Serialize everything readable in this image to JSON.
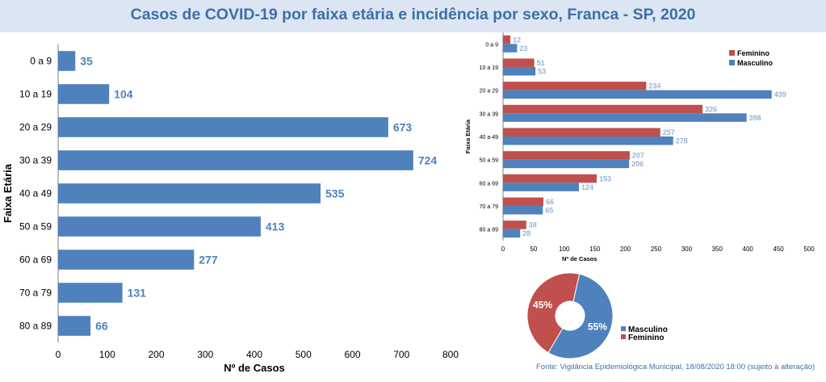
{
  "title": "Casos de COVID-19 por faixa etária e incidência por sexo, Franca - SP, 2020",
  "source": "Fonte: Vigilância Epidemiológica Municipal, 18/08/2020 18:00 (sujeito à alteração)",
  "colors": {
    "masculino": "#4f81bd",
    "feminino": "#c0504d",
    "label_main": "#4f81bd",
    "label_small": "#95b3d7",
    "title": "#3f6ea8"
  },
  "chart_data": [
    {
      "type": "bar",
      "orientation": "horizontal",
      "categories": [
        "0 a 9",
        "10 a 19",
        "20 a 29",
        "30 a 39",
        "40 a 49",
        "50 a 59",
        "60  a 69",
        "70 a 79",
        "80 a 89"
      ],
      "values": [
        35,
        104,
        673,
        724,
        535,
        413,
        277,
        131,
        66
      ],
      "xlabel": "Nº de Casos",
      "ylabel": "Faixa Etária",
      "xlim": [
        0,
        800
      ],
      "xticks": [
        0,
        100,
        200,
        300,
        400,
        500,
        600,
        700,
        800
      ],
      "grid": false
    },
    {
      "type": "bar",
      "orientation": "horizontal",
      "categories": [
        "0 a 9",
        "10 a 19",
        "20 a 29",
        "30 a 39",
        "40 a 49",
        "50 a 59",
        "60 a 69",
        "70 a 79",
        "80 a 89"
      ],
      "series": [
        {
          "name": "Feminino",
          "values": [
            12,
            51,
            234,
            326,
            257,
            207,
            153,
            66,
            38
          ]
        },
        {
          "name": "Masculino",
          "values": [
            23,
            53,
            439,
            398,
            278,
            206,
            124,
            65,
            28
          ]
        }
      ],
      "xlabel": "Nº de Casos",
      "ylabel": "Faixa Etária",
      "xlim": [
        0,
        500
      ],
      "xticks": [
        0,
        50,
        100,
        150,
        200,
        250,
        300,
        350,
        400,
        450,
        500
      ],
      "legend": "top-right",
      "grid": false
    },
    {
      "type": "pie",
      "style": "doughnut",
      "labels": [
        "Masculino",
        "Feminino"
      ],
      "values": [
        55,
        45
      ],
      "value_labels": [
        "55%",
        "45%"
      ],
      "legend": "right"
    }
  ]
}
